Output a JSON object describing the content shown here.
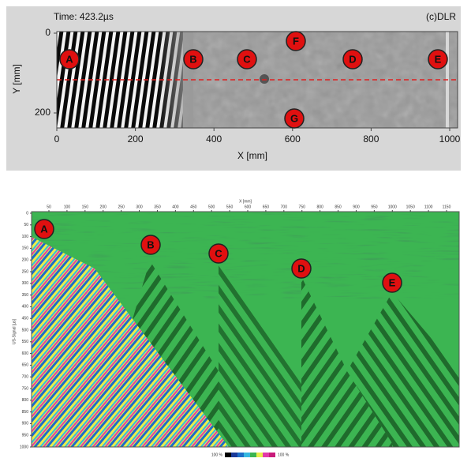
{
  "top_panel": {
    "time_label": "Time: 423.2µs",
    "copyright": "(c)DLR",
    "y_axis_label": "Y [mm]",
    "x_axis_label": "X [mm]",
    "yticks": [
      0,
      200
    ],
    "xticks": [
      0,
      200,
      400,
      600,
      800,
      1000
    ],
    "markers": [
      "A",
      "B",
      "C",
      "F",
      "D",
      "E",
      "G"
    ]
  },
  "bottom_panel": {
    "x_axis_label": "X [mm]",
    "y_axis_label": "US-Signal [µs]",
    "xticks": [
      50,
      100,
      150,
      200,
      250,
      300,
      350,
      400,
      450,
      500,
      550,
      600,
      650,
      700,
      750,
      800,
      850,
      900,
      950,
      1000,
      1050,
      1100,
      1150
    ],
    "yticks": [
      0,
      50,
      100,
      150,
      200,
      250,
      300,
      350,
      400,
      450,
      500,
      550,
      600,
      650,
      700,
      750,
      800,
      850,
      900,
      950,
      1000
    ],
    "markers": [
      "A",
      "B",
      "C",
      "D",
      "E"
    ],
    "colorbar_labels": [
      "100 %",
      "100 %"
    ]
  }
}
